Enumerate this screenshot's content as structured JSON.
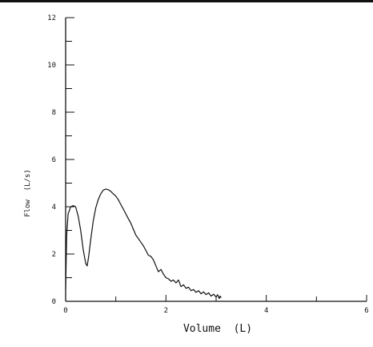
{
  "chart_data": {
    "type": "line",
    "title": "",
    "xlabel": "Volume  (L)",
    "ylabel": "Flow  (L/s)",
    "xlim": [
      0,
      6
    ],
    "ylim": [
      0,
      12
    ],
    "x_ticks": [
      "0",
      "2",
      "4",
      "6"
    ],
    "y_ticks": [
      "0",
      "2",
      "4",
      "6",
      "8",
      "10",
      "12"
    ],
    "x_minor_step": 1,
    "y_minor_step": 1,
    "grid": false,
    "line_color": "#111111",
    "series": [
      {
        "x": [
          0,
          0.02,
          0.05,
          0.1,
          0.15,
          0.2,
          0.25,
          0.3,
          0.35,
          0.4,
          0.43,
          0.46,
          0.5,
          0.55,
          0.6,
          0.65,
          0.7,
          0.75,
          0.8,
          0.85,
          0.9,
          0.95,
          1.0,
          1.05,
          1.1,
          1.15,
          1.2,
          1.25,
          1.3,
          1.35,
          1.4,
          1.45,
          1.5,
          1.55,
          1.6,
          1.65,
          1.7,
          1.75,
          1.8,
          1.85,
          1.9,
          1.95,
          2.0,
          2.05,
          2.1,
          2.15,
          2.2,
          2.25,
          2.3,
          2.35,
          2.4,
          2.45,
          2.5,
          2.55,
          2.6,
          2.65,
          2.7,
          2.75,
          2.8,
          2.85,
          2.9,
          2.95,
          3.0,
          3.03,
          3.06,
          3.08,
          3.1
        ],
        "y": [
          0.5,
          2.8,
          3.7,
          4.0,
          4.05,
          4.0,
          3.6,
          3.0,
          2.2,
          1.6,
          1.5,
          1.9,
          2.6,
          3.4,
          3.95,
          4.3,
          4.55,
          4.7,
          4.75,
          4.72,
          4.65,
          4.55,
          4.45,
          4.3,
          4.1,
          3.9,
          3.7,
          3.5,
          3.3,
          3.05,
          2.8,
          2.65,
          2.5,
          2.35,
          2.15,
          1.95,
          1.9,
          1.75,
          1.5,
          1.25,
          1.35,
          1.15,
          1.0,
          0.95,
          0.85,
          0.9,
          0.78,
          0.9,
          0.62,
          0.7,
          0.55,
          0.6,
          0.45,
          0.5,
          0.38,
          0.45,
          0.32,
          0.4,
          0.28,
          0.36,
          0.22,
          0.3,
          0.18,
          0.28,
          0.12,
          0.22,
          0.15
        ]
      }
    ]
  }
}
